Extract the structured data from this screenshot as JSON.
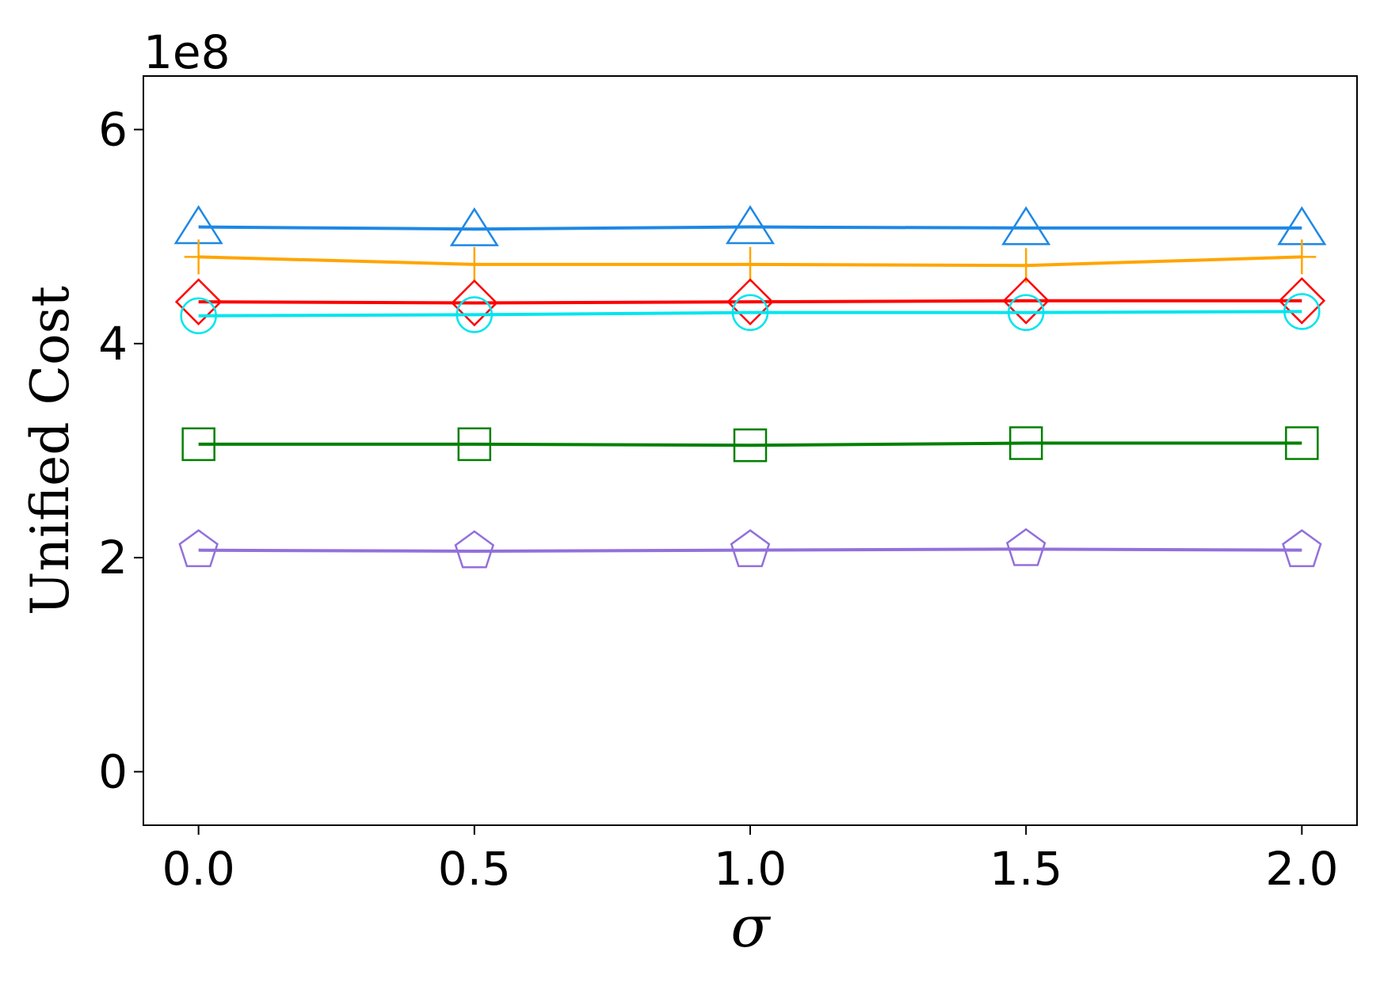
{
  "chart_data": {
    "type": "line",
    "offset_text": "1e8",
    "xlabel": "σ",
    "ylabel": "Unified Cost",
    "x": [
      0.0,
      0.5,
      1.0,
      1.5,
      2.0
    ],
    "x_tick_labels": [
      "0.0",
      "0.5",
      "1.0",
      "1.5",
      "2.0"
    ],
    "y_ticks": [
      0,
      2,
      4,
      6
    ],
    "y_tick_labels": [
      "0",
      "2",
      "4",
      "6"
    ],
    "xlim": [
      -0.1,
      2.1
    ],
    "ylim": [
      -0.5,
      6.5
    ],
    "grid": false,
    "series": [
      {
        "color": "#1e88e5",
        "marker": "triangle",
        "values": [
          5.09,
          5.07,
          5.09,
          5.08,
          5.08
        ]
      },
      {
        "color": "#ffa500",
        "marker": "plus",
        "values": [
          4.81,
          4.74,
          4.74,
          4.73,
          4.81
        ]
      },
      {
        "color": "#ff0000",
        "marker": "diamond",
        "values": [
          4.39,
          4.38,
          4.39,
          4.4,
          4.4
        ]
      },
      {
        "color": "#00e5ee",
        "marker": "circle",
        "values": [
          4.26,
          4.27,
          4.29,
          4.29,
          4.3
        ]
      },
      {
        "color": "#008000",
        "marker": "square",
        "values": [
          3.06,
          3.06,
          3.05,
          3.07,
          3.07
        ]
      },
      {
        "color": "#9370db",
        "marker": "pentagon",
        "values": [
          2.07,
          2.06,
          2.07,
          2.08,
          2.07
        ]
      }
    ]
  }
}
